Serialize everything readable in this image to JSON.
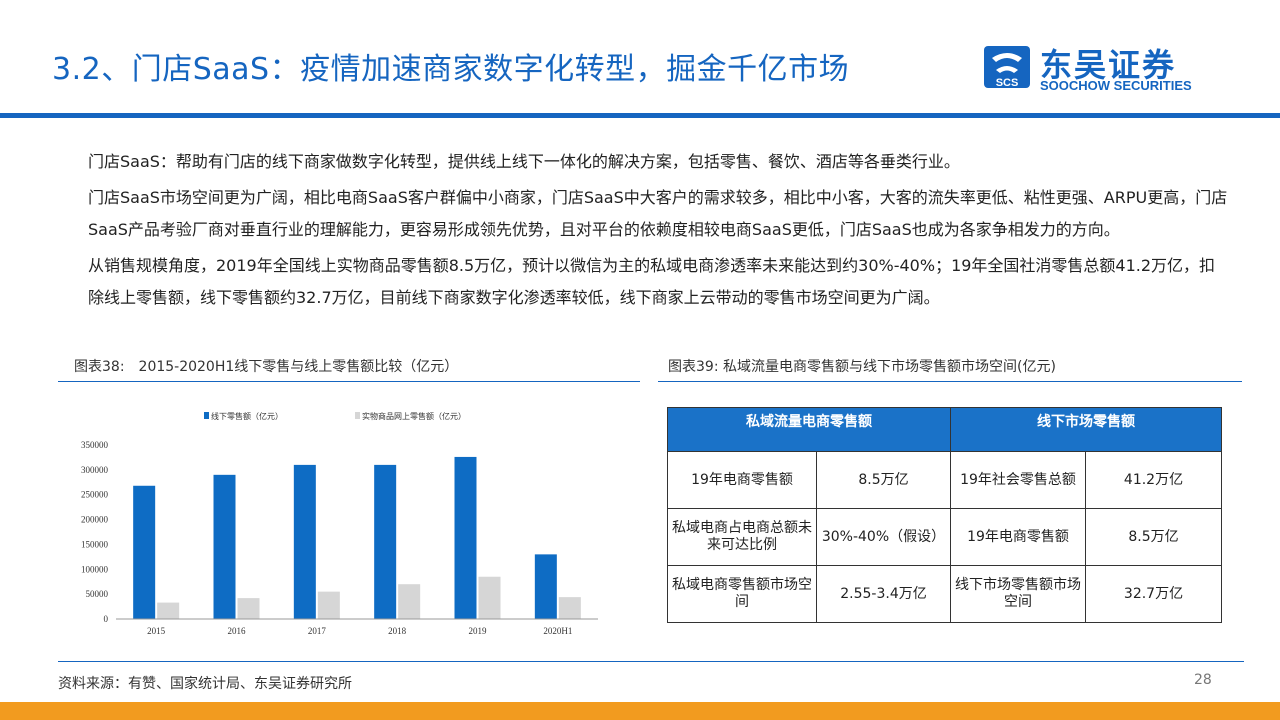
{
  "header": {
    "title": "3.2、门店SaaS：疫情加速商家数字化转型，掘金千亿市场",
    "logo_cn": "东吴证券",
    "logo_en": "SOOCHOW SECURITIES",
    "logo_mark_text": "SCS"
  },
  "bullets": [
    "门店SaaS：帮助有门店的线下商家做数字化转型，提供线上线下一体化的解决方案，包括零售、餐饮、酒店等各垂类行业。",
    "门店SaaS市场空间更为广阔，相比电商SaaS客户群偏中小商家，门店SaaS中大客户的需求较多，相比中小客，大客的流失率更低、粘性更强、ARPU更高，门店SaaS产品考验厂商对垂直行业的理解能力，更容易形成领先优势，且对平台的依赖度相较电商SaaS更低，门店SaaS也成为各家争相发力的方向。",
    "从销售规模角度，2019年全国线上实物商品零售额8.5万亿，预计以微信为主的私域电商渗透率未来能达到约30%-40%；19年全国社消零售总额41.2万亿，扣除线上零售额，线下零售额约32.7万亿，目前线下商家数字化渗透率较低，线下商家上云带动的零售市场空间更为广阔。"
  ],
  "bullet_mark": "",
  "chart_caption": "图表38:　2015-2020H1线下零售与线上零售额比较（亿元）",
  "table_caption": "图表39:  私域流量电商零售额与线下市场零售额市场空间(亿元)",
  "chart_data": {
    "type": "bar",
    "categories": [
      "2015",
      "2016",
      "2017",
      "2018",
      "2019",
      "2020H1"
    ],
    "series": [
      {
        "name": "线下零售额（亿元）",
        "values": [
          268000,
          290000,
          310000,
          310000,
          326000,
          130000
        ],
        "color": "#0e6cc4"
      },
      {
        "name": "实物商品网上零售额（亿元）",
        "values": [
          33000,
          42000,
          55000,
          70000,
          85000,
          44000
        ],
        "color": "#d6d6d6"
      }
    ],
    "y_ticks": [
      "0",
      "50000",
      "100000",
      "150000",
      "200000",
      "250000",
      "300000",
      "350000"
    ],
    "ylim": [
      0,
      350000
    ],
    "legend": "top",
    "grid": false
  },
  "table": {
    "headers": [
      "私域流量电商零售额",
      "线下市场零售额"
    ],
    "rows": [
      [
        "19年电商零售额",
        "8.5万亿",
        "19年社会零售总额",
        "41.2万亿"
      ],
      [
        "私域电商占电商总额未来可达比例",
        "30%-40%（假设）",
        "19年电商零售额",
        "8.5万亿"
      ],
      [
        "私域电商零售额市场空间",
        "2.55-3.4万亿",
        "线下市场零售额市场空间",
        "32.7万亿"
      ]
    ]
  },
  "footer": {
    "source": "资料来源：有赞、国家统计局、东吴证券研究所",
    "page": "28"
  },
  "colors": {
    "brand_blue": "#1565c0",
    "bar_blue": "#0e6cc4",
    "bar_gray": "#d6d6d6",
    "table_header": "#1a72c8",
    "bottom_bar": "#f29b1f"
  }
}
